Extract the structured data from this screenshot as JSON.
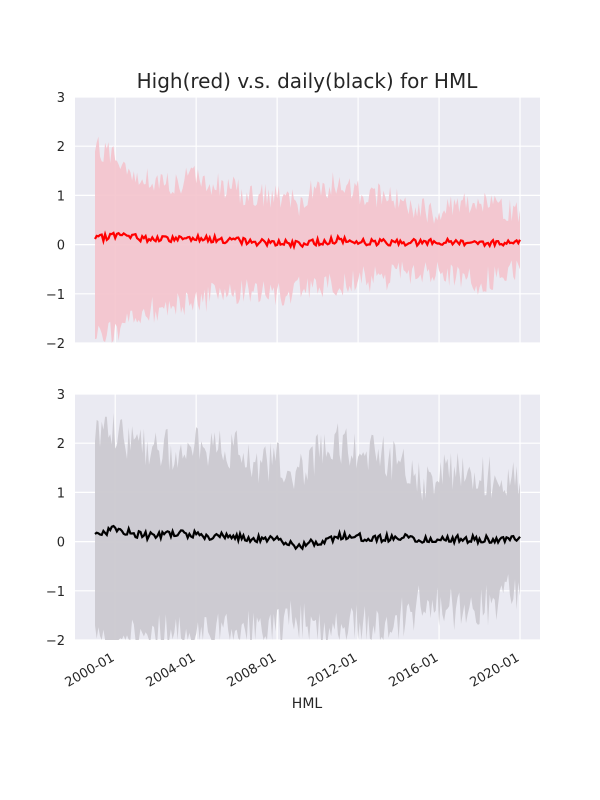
{
  "chart_data": {
    "type": "area",
    "title": "High(red) v.s. daily(black) for HML",
    "xlabel": "HML",
    "x_range": [
      "1999-01",
      "2020-01"
    ],
    "x_ticks": [
      "2000-01",
      "2004-01",
      "2008-01",
      "2012-01",
      "2016-01",
      "2020-01"
    ],
    "y_ticks": [
      "−2",
      "−1",
      "0",
      "1",
      "2",
      "3"
    ],
    "ylim": [
      -2,
      3
    ],
    "grid": true,
    "legend": "none",
    "panels": [
      {
        "series_color": "#ff0000",
        "band_color": "#f4c3cc",
        "x": [
          "1999-01",
          "2000-01",
          "2001-01",
          "2002-01",
          "2003-01",
          "2004-01",
          "2005-01",
          "2006-01",
          "2007-01",
          "2008-01",
          "2009-01",
          "2010-01",
          "2011-01",
          "2012-01",
          "2013-01",
          "2014-01",
          "2015-01",
          "2016-01",
          "2017-01",
          "2018-01",
          "2019-01",
          "2020-01"
        ],
        "mean": [
          0.1,
          0.2,
          0.15,
          0.1,
          0.12,
          0.15,
          0.1,
          0.08,
          0.05,
          0.05,
          0.0,
          0.05,
          0.1,
          0.05,
          0.05,
          0.05,
          0.05,
          0.05,
          0.05,
          0.05,
          0.02,
          0.1
        ],
        "upper": [
          2.0,
          1.8,
          1.4,
          1.3,
          1.2,
          1.4,
          1.2,
          1.1,
          1.0,
          1.0,
          0.8,
          1.2,
          1.2,
          1.1,
          1.0,
          0.9,
          0.7,
          0.7,
          0.9,
          0.9,
          0.7,
          0.7
        ],
        "lower": [
          -1.9,
          -1.8,
          -1.5,
          -1.3,
          -1.2,
          -1.2,
          -1.0,
          -1.0,
          -0.9,
          -1.0,
          -0.9,
          -0.9,
          -0.8,
          -0.7,
          -0.7,
          -0.6,
          -0.6,
          -0.6,
          -0.7,
          -0.8,
          -0.6,
          -0.5
        ]
      },
      {
        "series_color": "#000000",
        "band_color": "#cbc9d0",
        "x": [
          "1999-01",
          "2000-01",
          "2001-01",
          "2002-01",
          "2003-01",
          "2004-01",
          "2005-01",
          "2006-01",
          "2007-01",
          "2008-01",
          "2009-01",
          "2010-01",
          "2011-01",
          "2012-01",
          "2013-01",
          "2014-01",
          "2015-01",
          "2016-01",
          "2017-01",
          "2018-01",
          "2019-01",
          "2020-01"
        ],
        "mean": [
          0.15,
          0.25,
          0.15,
          0.1,
          0.15,
          0.15,
          0.1,
          0.1,
          0.05,
          0.05,
          -0.1,
          0.0,
          0.1,
          0.1,
          0.05,
          0.1,
          0.05,
          0.05,
          0.05,
          0.05,
          0.05,
          0.1
        ],
        "upper": [
          2.1,
          2.2,
          2.0,
          1.8,
          1.9,
          2.1,
          1.8,
          1.9,
          1.6,
          1.6,
          1.3,
          1.8,
          2.0,
          1.7,
          1.8,
          1.6,
          1.2,
          1.3,
          1.4,
          1.4,
          1.2,
          1.2
        ],
        "lower": [
          -2.0,
          -2.0,
          -2.0,
          -1.9,
          -1.9,
          -2.0,
          -1.8,
          -2.0,
          -1.7,
          -1.8,
          -1.5,
          -1.8,
          -1.9,
          -1.7,
          -1.8,
          -1.6,
          -1.3,
          -1.3,
          -1.4,
          -1.4,
          -1.1,
          -1.1
        ]
      }
    ]
  }
}
